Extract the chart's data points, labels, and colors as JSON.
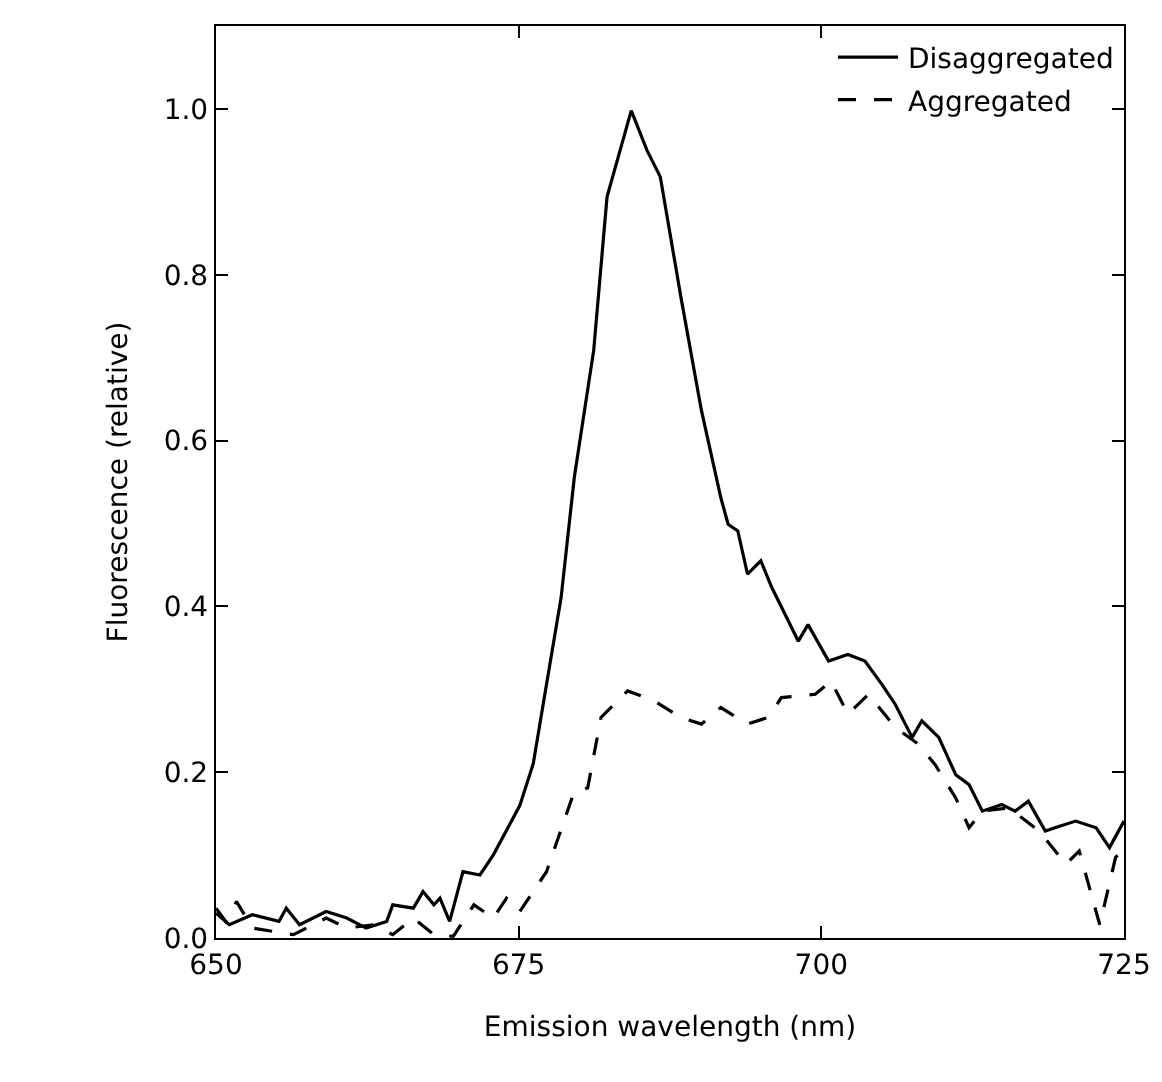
{
  "chart_data": {
    "type": "line",
    "xlabel": "Emission wavelength (nm)",
    "ylabel": "Fluorescence (relative)",
    "xlim": [
      650,
      725
    ],
    "xticks": [
      650,
      675,
      700,
      725
    ],
    "ylim": [
      0,
      1.1
    ],
    "yticks": [
      {
        "value": 0,
        "label": "0.0"
      },
      0.2,
      0.4,
      0.6,
      0.8,
      {
        "value": 1,
        "label": "1.0"
      }
    ],
    "grid": false,
    "legend": "top right",
    "marker": "none",
    "series": [
      {
        "name": "Disaggregated",
        "color": "#000000",
        "line_style": "solid",
        "x": [
          650,
          651.1,
          653,
          655.2,
          655.8,
          656.9,
          659.1,
          660.8,
          662.4,
          664.1,
          664.6,
          666.3,
          667.1,
          668,
          668.5,
          669.3,
          670.4,
          671.8,
          672.9,
          675.1,
          676.2,
          677.3,
          678.5,
          679.6,
          681.2,
          682.3,
          684.3,
          685.6,
          686.7,
          688.4,
          690.1,
          691.7,
          692.3,
          693.1,
          693.9,
          695,
          695.9,
          698.1,
          698.9,
          700.6,
          702.2,
          703.6,
          705,
          706.1,
          707.5,
          708.3,
          709.7,
          711.1,
          712.2,
          713.3,
          714.9,
          716,
          717.1,
          718.5,
          719.3,
          721,
          722.7,
          723.8,
          725
        ],
        "values": [
          0.03,
          0.016,
          0.028,
          0.02,
          0.036,
          0.016,
          0.032,
          0.024,
          0.012,
          0.02,
          0.04,
          0.036,
          0.056,
          0.04,
          0.048,
          0.02,
          0.08,
          0.076,
          0.1,
          0.16,
          0.21,
          0.306,
          0.41,
          0.556,
          0.709,
          0.894,
          0.998,
          0.95,
          0.918,
          0.773,
          0.636,
          0.531,
          0.499,
          0.491,
          0.439,
          0.455,
          0.423,
          0.358,
          0.378,
          0.334,
          0.342,
          0.334,
          0.306,
          0.282,
          0.242,
          0.262,
          0.242,
          0.197,
          0.185,
          0.153,
          0.161,
          0.153,
          0.165,
          0.129,
          0.133,
          0.141,
          0.133,
          0.109,
          0.141
        ]
      },
      {
        "name": "Aggregated",
        "color": "#000000",
        "line_style": "dashed",
        "x": [
          650,
          650.8,
          651.7,
          653,
          656.4,
          659.1,
          660.8,
          663,
          664.6,
          666.3,
          668,
          669.6,
          671.3,
          672.9,
          674,
          675.1,
          677.3,
          679.6,
          680.7,
          681.8,
          684,
          686.2,
          688.4,
          690.1,
          691.7,
          693.9,
          695.6,
          696.7,
          699.5,
          700.8,
          702.2,
          703.9,
          706.1,
          708,
          709.4,
          711.1,
          712.2,
          713.3,
          715.5,
          718,
          720.2,
          721.3,
          723,
          724.3,
          725
        ],
        "values": [
          0.036,
          0.02,
          0.044,
          0.012,
          0.004,
          0.024,
          0.012,
          0.016,
          0.004,
          0.024,
          0.004,
          0.002,
          0.04,
          0.024,
          0.048,
          0.032,
          0.08,
          0.177,
          0.181,
          0.266,
          0.298,
          0.286,
          0.266,
          0.258,
          0.278,
          0.258,
          0.266,
          0.29,
          0.294,
          0.31,
          0.27,
          0.294,
          0.254,
          0.234,
          0.209,
          0.169,
          0.133,
          0.153,
          0.157,
          0.129,
          0.089,
          0.105,
          0.016,
          0.097,
          0.109
        ]
      }
    ]
  }
}
